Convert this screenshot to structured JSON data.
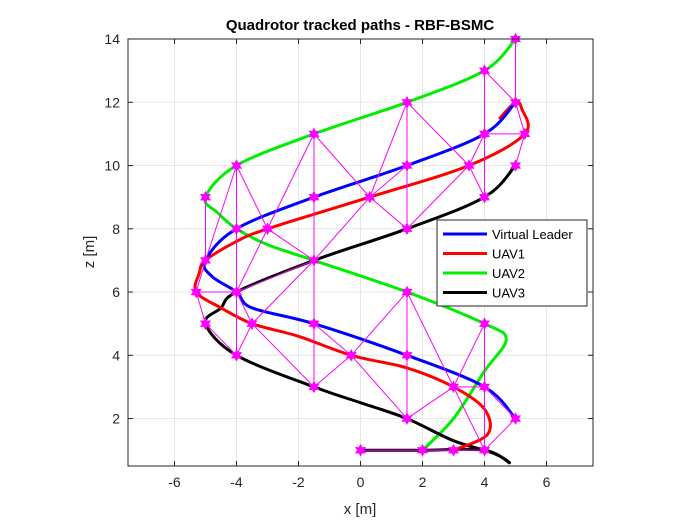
{
  "chart_data": {
    "type": "line",
    "title": "Quadrotor tracked paths - RBF-BSMC",
    "xlabel": "x [m]",
    "ylabel": "z [m]",
    "xlim": [
      -7.5,
      7.5
    ],
    "ylim": [
      0.5,
      14
    ],
    "xticks": [
      -6,
      -4,
      -2,
      0,
      2,
      4,
      6
    ],
    "yticks": [
      2,
      4,
      6,
      8,
      10,
      12,
      14
    ],
    "grid": true,
    "legend_position": "right",
    "series": [
      {
        "name": "Virtual Leader",
        "color": "#0000ff",
        "points": [
          [
            5,
            2
          ],
          [
            4,
            3
          ],
          [
            1.5,
            4
          ],
          [
            -1.5,
            5
          ],
          [
            -3.5,
            5.5
          ],
          [
            -4,
            6
          ],
          [
            -4.8,
            6.5
          ],
          [
            -5,
            7
          ],
          [
            -4,
            8
          ],
          [
            -1.5,
            9
          ],
          [
            1.5,
            10
          ],
          [
            4,
            11
          ],
          [
            5,
            12
          ]
        ]
      },
      {
        "name": "UAV1",
        "color": "#ff0000",
        "points": [
          [
            3,
            1
          ],
          [
            4.1,
            1.5
          ],
          [
            4,
            2.3
          ],
          [
            3,
            3
          ],
          [
            1.5,
            3.6
          ],
          [
            -0.3,
            4
          ],
          [
            -2,
            4.6
          ],
          [
            -3.5,
            5
          ],
          [
            -4.5,
            5.5
          ],
          [
            -5.3,
            6
          ],
          [
            -5.2,
            6.6
          ],
          [
            -5,
            7
          ],
          [
            -4,
            7.6
          ],
          [
            -3,
            8
          ],
          [
            0.3,
            9
          ],
          [
            3.5,
            10
          ],
          [
            5.3,
            11
          ],
          [
            5.2,
            11.8
          ],
          [
            5,
            12
          ],
          [
            4.5,
            11.5
          ]
        ]
      },
      {
        "name": "UAV2",
        "color": "#00ee00",
        "points": [
          [
            2,
            1
          ],
          [
            3,
            2
          ],
          [
            4,
            3.5
          ],
          [
            4.7,
            4.5
          ],
          [
            4,
            5
          ],
          [
            1.5,
            6
          ],
          [
            -1.5,
            7
          ],
          [
            -3,
            7.5
          ],
          [
            -4,
            8
          ],
          [
            -4.6,
            8.5
          ],
          [
            -5,
            9
          ],
          [
            -4,
            10
          ],
          [
            -1.5,
            11
          ],
          [
            1.5,
            12
          ],
          [
            4,
            13
          ],
          [
            5,
            14
          ]
        ]
      },
      {
        "name": "UAV3",
        "color": "#000000",
        "points": [
          [
            0,
            1
          ],
          [
            2,
            1
          ],
          [
            4,
            1
          ],
          [
            4.8,
            0.6
          ],
          [
            4.3,
            0.9
          ],
          [
            3,
            1.3
          ],
          [
            1.5,
            2
          ],
          [
            0,
            2.5
          ],
          [
            -1.5,
            3
          ],
          [
            -4,
            4
          ],
          [
            -5,
            5
          ],
          [
            -4.5,
            5.5
          ],
          [
            -4,
            6
          ],
          [
            -1.5,
            7
          ],
          [
            1.5,
            8
          ],
          [
            4,
            9
          ],
          [
            5,
            10
          ]
        ]
      }
    ],
    "markers": {
      "color": "#ff00ff",
      "symbol": "hexagram",
      "points": [
        [
          5,
          2
        ],
        [
          4,
          3
        ],
        [
          1.5,
          4
        ],
        [
          -1.5,
          5
        ],
        [
          -4,
          6
        ],
        [
          -5,
          7
        ],
        [
          -4,
          8
        ],
        [
          -1.5,
          9
        ],
        [
          1.5,
          10
        ],
        [
          4,
          11
        ],
        [
          5,
          12
        ],
        [
          3,
          1
        ],
        [
          4,
          1
        ],
        [
          2,
          1
        ],
        [
          0,
          1
        ],
        [
          -0.3,
          4
        ],
        [
          3,
          3
        ],
        [
          -3.5,
          5
        ],
        [
          -5.3,
          6
        ],
        [
          -3,
          8
        ],
        [
          0.3,
          9
        ],
        [
          3.5,
          10
        ],
        [
          5.3,
          11
        ],
        [
          4,
          5
        ],
        [
          1.5,
          6
        ],
        [
          -1.5,
          7
        ],
        [
          -5,
          9
        ],
        [
          -4,
          10
        ],
        [
          -1.5,
          11
        ],
        [
          1.5,
          12
        ],
        [
          4,
          13
        ],
        [
          5,
          14
        ],
        [
          1.5,
          2
        ],
        [
          -1.5,
          3
        ],
        [
          -4,
          4
        ],
        [
          -5,
          5
        ],
        [
          1.5,
          8
        ],
        [
          4,
          9
        ],
        [
          5,
          10
        ]
      ],
      "segments": [
        [
          [
            5,
            14
          ],
          [
            5,
            12
          ]
        ],
        [
          [
            4,
            13
          ],
          [
            4,
            11
          ]
        ],
        [
          [
            5,
            12
          ],
          [
            5.3,
            11
          ]
        ],
        [
          [
            5.3,
            11
          ],
          [
            5,
            10
          ]
        ],
        [
          [
            4,
            13
          ],
          [
            5,
            12
          ]
        ],
        [
          [
            4,
            11
          ],
          [
            5.3,
            11
          ]
        ],
        [
          [
            4,
            11
          ],
          [
            3.5,
            10
          ]
        ],
        [
          [
            4,
            9
          ],
          [
            3.5,
            10
          ]
        ],
        [
          [
            4,
            11
          ],
          [
            4,
            9
          ]
        ],
        [
          [
            1.5,
            12
          ],
          [
            1.5,
            8
          ]
        ],
        [
          [
            1.5,
            12
          ],
          [
            3.5,
            10
          ]
        ],
        [
          [
            1.5,
            10
          ],
          [
            0.3,
            9
          ]
        ],
        [
          [
            1.5,
            8
          ],
          [
            0.3,
            9
          ]
        ],
        [
          [
            1.5,
            12
          ],
          [
            0.3,
            9
          ]
        ],
        [
          [
            1.5,
            8
          ],
          [
            3.5,
            10
          ]
        ],
        [
          [
            -1.5,
            11
          ],
          [
            -1.5,
            7
          ]
        ],
        [
          [
            -1.5,
            11
          ],
          [
            0.3,
            9
          ]
        ],
        [
          [
            -1.5,
            11
          ],
          [
            -3,
            8
          ]
        ],
        [
          [
            -1.5,
            7
          ],
          [
            0.3,
            9
          ]
        ],
        [
          [
            -1.5,
            7
          ],
          [
            -3,
            8
          ]
        ],
        [
          [
            -4,
            10
          ],
          [
            -4,
            4
          ]
        ],
        [
          [
            -4,
            10
          ],
          [
            -3,
            8
          ]
        ],
        [
          [
            -4,
            6
          ],
          [
            -3,
            8
          ]
        ],
        [
          [
            -4,
            10
          ],
          [
            -5,
            7
          ]
        ],
        [
          [
            -5,
            9
          ],
          [
            -5,
            7
          ]
        ],
        [
          [
            -5,
            7
          ],
          [
            -5.3,
            6
          ]
        ],
        [
          [
            -5.3,
            6
          ],
          [
            -5,
            5
          ]
        ],
        [
          [
            -4,
            6
          ],
          [
            -5.3,
            6
          ]
        ],
        [
          [
            -4,
            6
          ],
          [
            -1.5,
            7
          ]
        ],
        [
          [
            -4,
            6
          ],
          [
            -3.5,
            5
          ]
        ],
        [
          [
            -3.5,
            5
          ],
          [
            -1.5,
            7
          ]
        ],
        [
          [
            -5,
            5
          ],
          [
            -4,
            4
          ]
        ],
        [
          [
            -3.5,
            5
          ],
          [
            -4,
            4
          ]
        ],
        [
          [
            -1.5,
            7
          ],
          [
            -1.5,
            3
          ]
        ],
        [
          [
            -1.5,
            3
          ],
          [
            -3.5,
            5
          ]
        ],
        [
          [
            -1.5,
            3
          ],
          [
            -0.3,
            4
          ]
        ],
        [
          [
            -1.5,
            5
          ],
          [
            -0.3,
            4
          ]
        ],
        [
          [
            1.5,
            6
          ],
          [
            1.5,
            2
          ]
        ],
        [
          [
            1.5,
            6
          ],
          [
            -0.3,
            4
          ]
        ],
        [
          [
            1.5,
            2
          ],
          [
            -0.3,
            4
          ]
        ],
        [
          [
            1.5,
            6
          ],
          [
            3,
            3
          ]
        ],
        [
          [
            1.5,
            2
          ],
          [
            3,
            3
          ]
        ],
        [
          [
            4,
            5
          ],
          [
            4,
            1
          ]
        ],
        [
          [
            4,
            5
          ],
          [
            3,
            3
          ]
        ],
        [
          [
            4,
            3
          ],
          [
            3,
            3
          ]
        ],
        [
          [
            4,
            1
          ],
          [
            3,
            3
          ]
        ],
        [
          [
            4,
            3
          ],
          [
            5,
            2
          ]
        ],
        [
          [
            4,
            1
          ],
          [
            5,
            2
          ]
        ],
        [
          [
            0,
            1
          ],
          [
            4,
            1
          ]
        ],
        [
          [
            2,
            1
          ],
          [
            3,
            1
          ]
        ]
      ]
    }
  }
}
